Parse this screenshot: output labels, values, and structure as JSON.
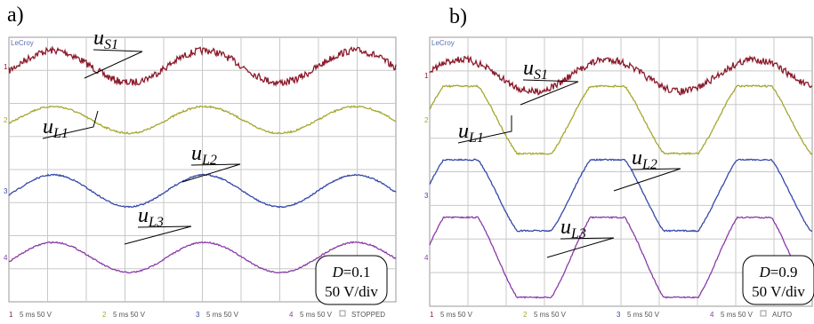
{
  "panels": [
    {
      "tag": "a)",
      "brand": "LeCroy",
      "labels": [
        {
          "base": "u",
          "sub": "S1"
        },
        {
          "base": "u",
          "sub": "L1"
        },
        {
          "base": "u",
          "sub": "L2"
        },
        {
          "base": "u",
          "sub": "L3"
        }
      ],
      "channels": [
        "1",
        "2",
        "3",
        "4"
      ],
      "box": {
        "param": "D",
        "value": "=0.1",
        "scale": "50 V/div"
      },
      "footer": {
        "channels": [
          "1",
          "2",
          "3",
          "4"
        ],
        "settings": [
          "5 ms 50 V",
          "5 ms 50 V",
          "5 ms 50 V",
          "5 ms 50 V"
        ],
        "status": "STOPPED"
      }
    },
    {
      "tag": "b)",
      "brand": "LeCroy",
      "labels": [
        {
          "base": "u",
          "sub": "S1"
        },
        {
          "base": "u",
          "sub": "L1"
        },
        {
          "base": "u",
          "sub": "L2"
        },
        {
          "base": "u",
          "sub": "L3"
        }
      ],
      "channels": [
        "1",
        "2",
        "3",
        "4"
      ],
      "box": {
        "param": "D",
        "value": "=0.9",
        "scale": "50 V/div"
      },
      "footer": {
        "channels": [
          "1",
          "2",
          "3",
          "4"
        ],
        "settings": [
          "5 ms 50 V",
          "5 ms 50 V",
          "5 ms 50 V",
          "5 ms 50 V"
        ],
        "status": "AUTO"
      }
    }
  ]
}
